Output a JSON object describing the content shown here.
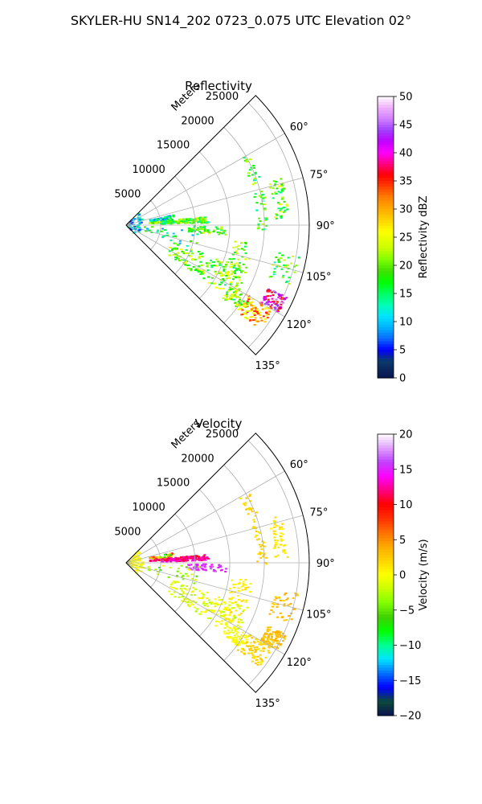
{
  "figure": {
    "suptitle": "SKYLER-HU  SN14_202  0723_0.075 UTC Elevation 02°"
  },
  "chart_data": [
    {
      "type": "polar_sector",
      "title": "Reflectivity",
      "radial_axis_label": "Meters",
      "radial_ticks": [
        5000,
        10000,
        15000,
        20000,
        25000
      ],
      "radial_tick_labels": [
        "5000",
        "10000",
        "15000",
        "20000",
        "25000"
      ],
      "angular_ticks": [
        60,
        75,
        90,
        105,
        120,
        135
      ],
      "angular_tick_labels": [
        "60°",
        "75°",
        "90°",
        "105°",
        "120°",
        "135°"
      ],
      "theta_range_deg": [
        45,
        135
      ],
      "r_range": [
        0,
        26500
      ],
      "grid": true,
      "colorbar": {
        "label": "Reflectivity dBZ",
        "min": 0,
        "max": 50,
        "ticks": [
          0,
          5,
          10,
          15,
          20,
          25,
          30,
          35,
          40,
          45,
          50
        ],
        "tick_labels": [
          "0",
          "5",
          "10",
          "15",
          "20",
          "25",
          "30",
          "35",
          "40",
          "45",
          "50"
        ],
        "stops": [
          [
            0,
            "#0a1450"
          ],
          [
            3,
            "#0b3a6a"
          ],
          [
            5,
            "#0000ff"
          ],
          [
            7,
            "#0a6cff"
          ],
          [
            9,
            "#00b4ff"
          ],
          [
            11,
            "#00e5ff"
          ],
          [
            13,
            "#00ffb0"
          ],
          [
            15,
            "#00ff60"
          ],
          [
            17,
            "#00ff00"
          ],
          [
            19,
            "#40e000"
          ],
          [
            21,
            "#80ff00"
          ],
          [
            23,
            "#c8ff00"
          ],
          [
            26,
            "#ffff00"
          ],
          [
            28,
            "#ffd400"
          ],
          [
            30,
            "#ffaa00"
          ],
          [
            32,
            "#ff8000"
          ],
          [
            34,
            "#ff4000"
          ],
          [
            36,
            "#ff0000"
          ],
          [
            38,
            "#ff0080"
          ],
          [
            40,
            "#ff00ff"
          ],
          [
            42,
            "#c000ff"
          ],
          [
            44,
            "#a040ff"
          ],
          [
            46,
            "#d080ff"
          ],
          [
            48,
            "#f0b0ff"
          ],
          [
            50,
            "#ffffff"
          ]
        ]
      }
    },
    {
      "type": "polar_sector",
      "title": "Velocity",
      "radial_axis_label": "Meters",
      "radial_ticks": [
        5000,
        10000,
        15000,
        20000,
        25000
      ],
      "radial_tick_labels": [
        "5000",
        "10000",
        "15000",
        "20000",
        "25000"
      ],
      "angular_ticks": [
        60,
        75,
        90,
        105,
        120,
        135
      ],
      "angular_tick_labels": [
        "60°",
        "75°",
        "90°",
        "105°",
        "120°",
        "135°"
      ],
      "theta_range_deg": [
        45,
        135
      ],
      "r_range": [
        0,
        26500
      ],
      "grid": true,
      "colorbar": {
        "label": "Velocity (m/s)",
        "min": -20,
        "max": 20,
        "ticks": [
          -20,
          -15,
          -10,
          -5,
          0,
          5,
          10,
          15,
          20
        ],
        "tick_labels": [
          "−20",
          "−15",
          "−10",
          "−5",
          "0",
          "5",
          "10",
          "15",
          "20"
        ],
        "stops": [
          [
            -20,
            "#0a1450"
          ],
          [
            -18,
            "#0b4a3a"
          ],
          [
            -16,
            "#0000ff"
          ],
          [
            -14,
            "#0070ff"
          ],
          [
            -12,
            "#00e5ff"
          ],
          [
            -10,
            "#00ff90"
          ],
          [
            -8,
            "#00ff00"
          ],
          [
            -6,
            "#40d000"
          ],
          [
            -4,
            "#80ff00"
          ],
          [
            -2,
            "#c8ff00"
          ],
          [
            0,
            "#ffff00"
          ],
          [
            2,
            "#ffd400"
          ],
          [
            4,
            "#ffaa00"
          ],
          [
            6,
            "#ff7000"
          ],
          [
            8,
            "#ff3000"
          ],
          [
            10,
            "#ff0000"
          ],
          [
            12,
            "#ff0080"
          ],
          [
            14,
            "#ff00ff"
          ],
          [
            16,
            "#c040ff"
          ],
          [
            18,
            "#e0a0ff"
          ],
          [
            20,
            "#ffffff"
          ]
        ]
      }
    }
  ]
}
